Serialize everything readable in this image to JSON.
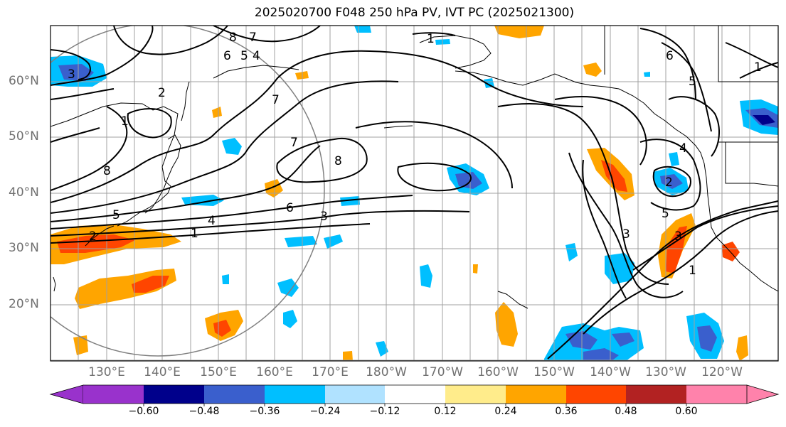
{
  "title": "2025020700 F048 250 hPa PV, IVT PC (2025021300)",
  "lat_labels": [
    "60°N",
    "50°N",
    "40°N",
    "30°N",
    "20°N"
  ],
  "lon_labels": [
    "130°E",
    "140°E",
    "150°E",
    "160°E",
    "170°E",
    "180°W",
    "170°W",
    "160°W",
    "150°W",
    "140°W",
    "130°W",
    "120°W"
  ],
  "contour_labels": [
    "8",
    "7",
    "6",
    "5",
    "4",
    "1",
    "3",
    "2",
    "1",
    "7",
    "8",
    "6",
    "5",
    "4",
    "3",
    "2",
    "1",
    "1",
    "5",
    "8",
    "7",
    "6",
    "3",
    "2",
    "5",
    "4",
    "3",
    "1"
  ],
  "colorbar": {
    "ticks": [
      "−0.60",
      "−0.48",
      "−0.36",
      "−0.24",
      "−0.12",
      "0.12",
      "0.24",
      "0.36",
      "0.48",
      "0.60"
    ],
    "colors": [
      "#9932cc",
      "#00008b",
      "#3a5fcd",
      "#00bfff",
      "#b0e2ff",
      "#ffffff",
      "#ffec8b",
      "#ffa500",
      "#ff4500",
      "#b22222",
      "#ff82ab"
    ]
  },
  "colors": {
    "contour": "#000000",
    "grid": "#a0a0a0",
    "axis_label": "#707070"
  }
}
